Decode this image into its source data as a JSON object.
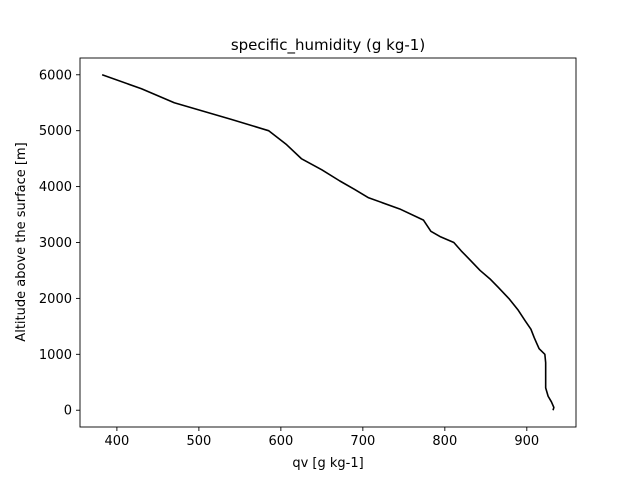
{
  "chart_data": {
    "type": "line",
    "title": "specific_humidity (g kg-1)",
    "xlabel": "qv [g kg-1]",
    "ylabel": "Altitude above the surface [m]",
    "xlim": [
      355,
      960
    ],
    "ylim": [
      -300,
      6300
    ],
    "xticks": [
      400,
      500,
      600,
      700,
      800,
      900
    ],
    "yticks": [
      0,
      1000,
      2000,
      3000,
      4000,
      5000,
      6000
    ],
    "grid": false,
    "series": [
      {
        "color": "#000000",
        "points": [
          [
            932,
            0
          ],
          [
            933,
            50
          ],
          [
            930,
            150
          ],
          [
            926,
            250
          ],
          [
            923,
            400
          ],
          [
            923,
            550
          ],
          [
            923,
            700
          ],
          [
            923,
            850
          ],
          [
            922,
            1000
          ],
          [
            915,
            1100
          ],
          [
            912,
            1200
          ],
          [
            909,
            1300
          ],
          [
            905,
            1450
          ],
          [
            898,
            1600
          ],
          [
            889,
            1800
          ],
          [
            878,
            2000
          ],
          [
            865,
            2200
          ],
          [
            855,
            2350
          ],
          [
            843,
            2500
          ],
          [
            830,
            2700
          ],
          [
            820,
            2850
          ],
          [
            811,
            3000
          ],
          [
            795,
            3100
          ],
          [
            783,
            3200
          ],
          [
            774,
            3400
          ],
          [
            745,
            3600
          ],
          [
            707,
            3800
          ],
          [
            690,
            3950
          ],
          [
            672,
            4100
          ],
          [
            650,
            4300
          ],
          [
            625,
            4500
          ],
          [
            607,
            4750
          ],
          [
            585,
            5000
          ],
          [
            540,
            5200
          ],
          [
            470,
            5500
          ],
          [
            430,
            5750
          ],
          [
            382,
            6000
          ]
        ]
      }
    ]
  }
}
